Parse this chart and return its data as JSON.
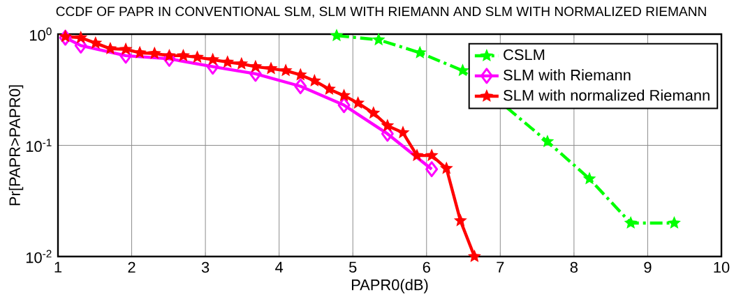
{
  "chart_data": {
    "type": "line",
    "title": "CCDF OF PAPR IN CONVENTIONAL SLM, SLM WITH RIEMANN AND SLM WITH NORMALIZED RIEMANN",
    "xlabel": "PAPR0(dB)",
    "ylabel": "Pr[PAPR>PAPR0]",
    "series": [
      {
        "name": "CSLM",
        "color": "#00ff00",
        "marker": "star",
        "line_style": "dashdot",
        "x": [
          4.78,
          5.35,
          5.91,
          6.49,
          7.64,
          8.21,
          8.77,
          9.36
        ],
        "values": [
          0.97,
          0.89,
          0.68,
          0.47,
          0.108,
          0.05,
          0.02,
          0.02
        ]
      },
      {
        "name": "SLM with Riemann",
        "color": "#ff00ff",
        "marker": "diamond",
        "line_style": "solid",
        "x": [
          1.1,
          1.31,
          1.92,
          2.51,
          3.1,
          3.68,
          4.29,
          4.88,
          5.47,
          6.07
        ],
        "values": [
          0.93,
          0.79,
          0.64,
          0.6,
          0.51,
          0.44,
          0.34,
          0.23,
          0.127,
          0.061
        ]
      },
      {
        "name": "SLM with normalized Riemann",
        "color": "#ff0000",
        "marker": "star",
        "line_style": "solid",
        "x": [
          1.1,
          1.31,
          1.51,
          1.71,
          1.92,
          2.11,
          2.31,
          2.51,
          2.7,
          2.89,
          3.1,
          3.3,
          3.49,
          3.68,
          3.89,
          4.09,
          4.29,
          4.48,
          4.68,
          4.88,
          5.07,
          5.28,
          5.47,
          5.68,
          5.87,
          6.07,
          6.27,
          6.46,
          6.65
        ],
        "values": [
          0.95,
          0.93,
          0.83,
          0.74,
          0.73,
          0.68,
          0.67,
          0.64,
          0.64,
          0.62,
          0.59,
          0.56,
          0.54,
          0.51,
          0.49,
          0.47,
          0.43,
          0.38,
          0.32,
          0.28,
          0.24,
          0.195,
          0.15,
          0.13,
          0.081,
          0.081,
          0.062,
          0.021,
          0.01
        ]
      }
    ],
    "xlim": [
      1,
      10
    ],
    "xticks": [
      1,
      2,
      3,
      4,
      5,
      6,
      7,
      8,
      9,
      10
    ],
    "ylim": [
      0.01,
      1
    ],
    "yticks": [
      {
        "value": 0.01,
        "label": "10$^{-2}$"
      },
      {
        "value": 0.1,
        "label": "10$^{-1}$"
      },
      {
        "value": 1,
        "label": "10$^{0}$"
      }
    ],
    "log": "y",
    "grid": true,
    "legend": "top right"
  }
}
